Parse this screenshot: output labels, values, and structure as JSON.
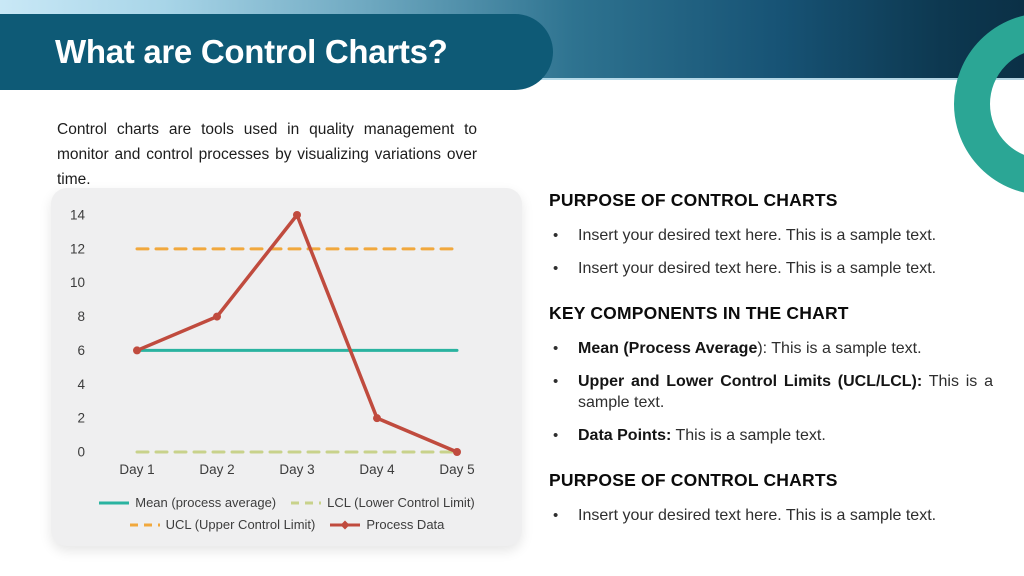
{
  "header": {
    "title": "What are Control Charts?"
  },
  "intro": {
    "text": "Control charts are tools used in quality management to monitor and control processes by visualizing variations over time."
  },
  "chart_data": {
    "type": "line",
    "categories": [
      "Day 1",
      "Day 2",
      "Day 3",
      "Day 4",
      "Day 5"
    ],
    "series": [
      {
        "name": "Mean (process average)",
        "values": [
          6,
          6,
          6,
          6,
          6
        ],
        "color": "#2ab3a0",
        "style": "solid",
        "marker": false
      },
      {
        "name": "LCL (Lower Control Limit)",
        "values": [
          0,
          0,
          0,
          0,
          0
        ],
        "color": "#c8d28b",
        "style": "dashed",
        "marker": false
      },
      {
        "name": "UCL (Upper Control Limit)",
        "values": [
          12,
          12,
          12,
          12,
          12
        ],
        "color": "#f1a83d",
        "style": "dashed",
        "marker": false
      },
      {
        "name": "Process Data",
        "values": [
          6,
          8,
          14,
          2,
          0
        ],
        "color": "#c04b3e",
        "style": "solid",
        "marker": true
      }
    ],
    "ylim": [
      0,
      14
    ],
    "yticks": [
      0,
      2,
      4,
      6,
      8,
      10,
      12,
      14
    ],
    "grid": false,
    "legend_position": "bottom",
    "legend_order": [
      "Mean (process average)",
      "LCL (Lower Control Limit)",
      "UCL (Upper Control Limit)",
      "Process Data"
    ]
  },
  "sections": [
    {
      "heading": "PURPOSE OF CONTROL CHARTS",
      "bullets": [
        {
          "bold": "",
          "text": "Insert your desired text here. This is a sample text."
        },
        {
          "bold": "",
          "text": "Insert your desired text here. This is a sample text."
        }
      ]
    },
    {
      "heading": "KEY COMPONENTS IN THE CHART",
      "bullets": [
        {
          "bold": "Mean (Process Average",
          "text": "): This is a sample text."
        },
        {
          "bold": "Upper and Lower Control Limits (UCL/LCL):",
          "text": " This is a sample text."
        },
        {
          "bold": "Data Points:",
          "text": " This is a sample text."
        }
      ]
    },
    {
      "heading": "PURPOSE OF CONTROL CHARTS",
      "bullets": [
        {
          "bold": "",
          "text": "Insert your desired text here. This is a sample text."
        }
      ]
    }
  ]
}
